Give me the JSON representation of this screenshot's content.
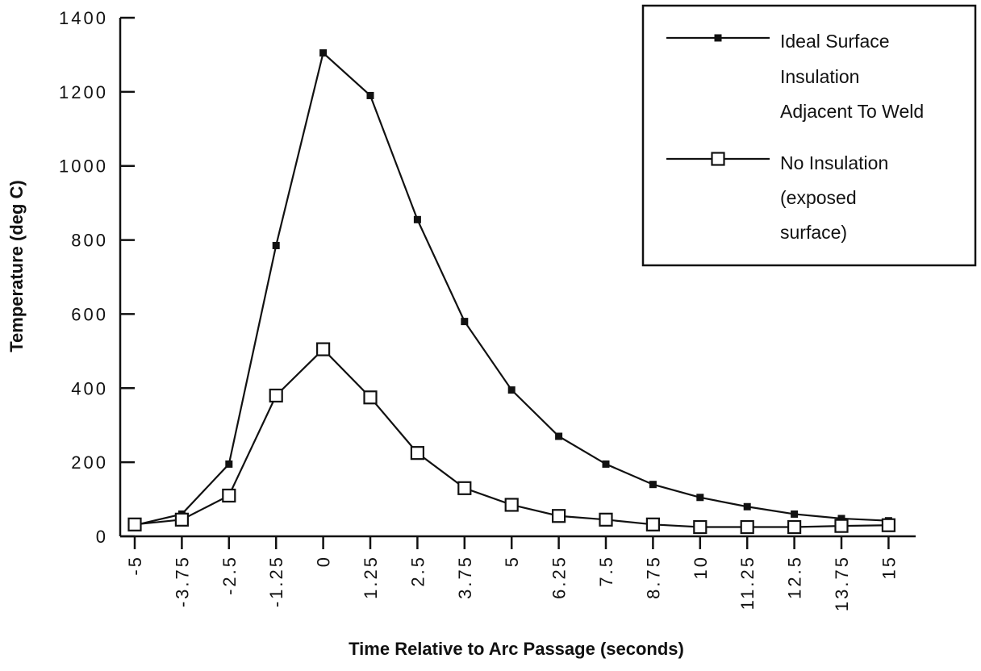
{
  "chart_data": {
    "type": "line",
    "title": "",
    "xlabel": "Time Relative to Arc Passage (seconds)",
    "ylabel": "Temperature (deg C)",
    "ylim": [
      0,
      1400
    ],
    "yticks": [
      "0",
      "200",
      "400",
      "600",
      "800",
      "1000",
      "1200",
      "1400"
    ],
    "ytick_values": [
      0,
      200,
      400,
      600,
      800,
      1000,
      1200,
      1400
    ],
    "categories": [
      "-5",
      "-3.75",
      "-2.5",
      "-1.25",
      "0",
      "1.25",
      "2.5",
      "3.75",
      "5",
      "6.25",
      "7.5",
      "8.75",
      "10",
      "11.25",
      "12.5",
      "13.75",
      "15"
    ],
    "grid": false,
    "legend_position": "top-right",
    "series": [
      {
        "name": "Ideal Surface Insulation Adjacent To Weld",
        "legend_lines": [
          "Ideal Surface",
          "Insulation",
          "Adjacent To Weld"
        ],
        "marker": "filled-square",
        "values": [
          30,
          60,
          195,
          785,
          1305,
          1190,
          855,
          580,
          395,
          270,
          195,
          140,
          105,
          80,
          60,
          48,
          42
        ]
      },
      {
        "name": "No Insulation (exposed surface)",
        "legend_lines": [
          "No Insulation",
          "(exposed",
          "surface)"
        ],
        "marker": "open-square",
        "values": [
          32,
          45,
          110,
          380,
          505,
          375,
          225,
          130,
          85,
          55,
          45,
          32,
          25,
          25,
          25,
          28,
          30
        ]
      }
    ]
  }
}
